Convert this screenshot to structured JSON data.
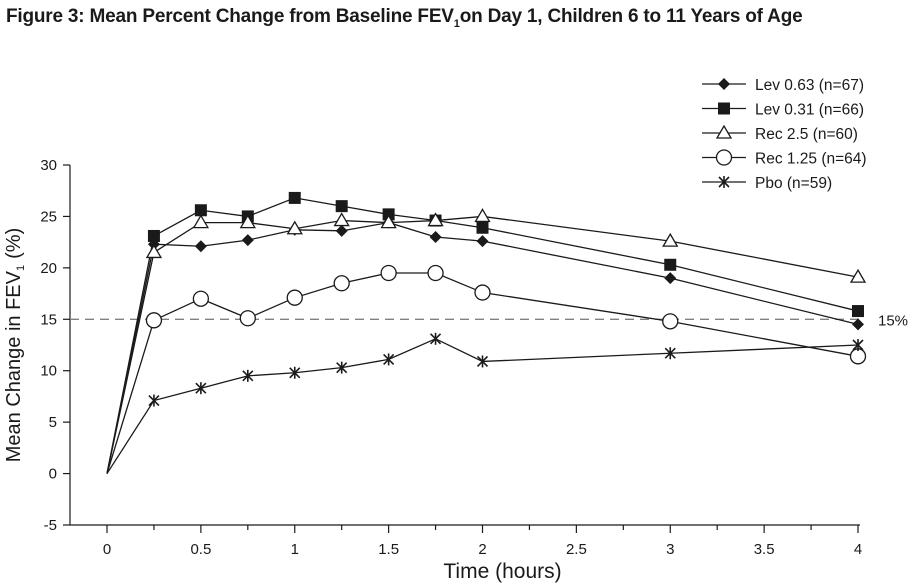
{
  "title_main": "Figure 3: Mean Percent Change from Baseline FEV",
  "title_sub": "1",
  "title_tail": "on Day 1, Children 6 to 11 Years of Age",
  "chart_data": {
    "type": "line",
    "xlabel": "Time (hours)",
    "ylabel_main": "Mean Change in FEV",
    "ylabel_sub": "1",
    "ylabel_unit": "(%)",
    "xlim": [
      0,
      4
    ],
    "ylim": [
      -5,
      30
    ],
    "x_ticks": [
      0,
      0.5,
      1,
      1.5,
      2,
      2.5,
      3,
      3.5,
      4
    ],
    "y_ticks": [
      -5,
      0,
      5,
      10,
      15,
      20,
      25,
      30
    ],
    "reference_line": {
      "y": 15,
      "label": "15%"
    },
    "legend_position": "top-right",
    "grid": false,
    "x": [
      0,
      0.25,
      0.5,
      0.75,
      1,
      1.25,
      1.5,
      1.75,
      2,
      3,
      4
    ],
    "series": [
      {
        "name": "Lev 0.63 (n=67)",
        "marker": "diamond",
        "values": [
          0,
          22.3,
          22.1,
          22.7,
          23.7,
          23.6,
          24.4,
          23.0,
          22.6,
          19.0,
          14.5
        ]
      },
      {
        "name": "Lev 0.31 (n=66)",
        "marker": "square",
        "values": [
          0,
          23.1,
          25.6,
          25.0,
          26.8,
          26.0,
          25.2,
          24.6,
          23.9,
          20.3,
          15.8
        ]
      },
      {
        "name": "Rec 2.5 (n=60)",
        "marker": "triangle-open",
        "values": [
          0,
          21.5,
          24.4,
          24.4,
          23.8,
          24.6,
          24.4,
          24.6,
          25.0,
          22.6,
          19.1
        ]
      },
      {
        "name": "Rec 1.25 (n=64)",
        "marker": "circle-open",
        "values": [
          0,
          14.9,
          17.0,
          15.1,
          17.1,
          18.5,
          19.5,
          19.5,
          17.6,
          14.8,
          11.4
        ]
      },
      {
        "name": "Pbo (n=59)",
        "marker": "asterisk",
        "values": [
          0,
          7.1,
          8.3,
          9.5,
          9.8,
          10.3,
          11.1,
          13.1,
          10.9,
          11.7,
          12.5
        ]
      }
    ]
  }
}
